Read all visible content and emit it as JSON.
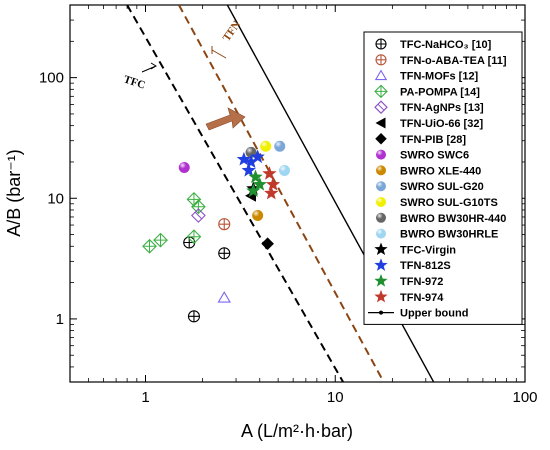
{
  "chart_data": {
    "type": "scatter",
    "xlabel": "A (L/m²·h·bar)",
    "ylabel": "A/B (bar⁻¹)",
    "xscale": "log",
    "yscale": "log",
    "xlim": [
      0.4,
      100
    ],
    "ylim": [
      0.3,
      400
    ],
    "xticks": [
      1,
      10,
      100
    ],
    "xtick_labels": [
      "1",
      "10",
      "100"
    ],
    "yticks": [
      1,
      10,
      100
    ],
    "ytick_labels": [
      "1",
      "10",
      "100"
    ],
    "grid": false,
    "legend_position": "top-right",
    "annotations": [
      {
        "text": "TFC",
        "color": "#000000"
      },
      {
        "text": "TFN",
        "color": "#8b4513"
      }
    ],
    "lines": [
      {
        "name": "TFC",
        "style": "dashed",
        "color": "#000000",
        "points": [
          [
            0.8,
            400
          ],
          [
            11,
            0.3
          ]
        ]
      },
      {
        "name": "TFN",
        "style": "dashed",
        "color": "#8b4513",
        "points": [
          [
            1.5,
            400
          ],
          [
            18,
            0.3
          ]
        ]
      },
      {
        "name": "Upper bound",
        "style": "solid",
        "color": "#000000",
        "points": [
          [
            2.7,
            400
          ],
          [
            33,
            0.3
          ]
        ]
      }
    ],
    "series": [
      {
        "name": "TFC-NaHCO₃ [10]",
        "marker": "circle-plus",
        "color": "#000000",
        "points": [
          [
            1.7,
            4.3
          ],
          [
            2.6,
            3.5
          ],
          [
            1.8,
            1.05
          ]
        ]
      },
      {
        "name": "TFN-o-ABA-TEA [11]",
        "marker": "circle-plus",
        "color": "#b8553a",
        "points": [
          [
            2.6,
            6.1
          ]
        ]
      },
      {
        "name": "TFN-MOFs [12]",
        "marker": "triangle-open",
        "color": "#7b68ee",
        "points": [
          [
            2.6,
            1.5
          ]
        ]
      },
      {
        "name": "PA-POMPA [14]",
        "marker": "diamond-plus",
        "color": "#3cb043",
        "points": [
          [
            1.05,
            4.0
          ],
          [
            1.2,
            4.5
          ],
          [
            1.8,
            4.8
          ],
          [
            1.8,
            9.8
          ],
          [
            1.9,
            8.5
          ]
        ]
      },
      {
        "name": "TFN-AgNPs [13]",
        "marker": "diamond-slash",
        "color": "#8a4fc7",
        "points": [
          [
            1.9,
            7.2
          ]
        ]
      },
      {
        "name": "TFN-UiO-66 [32]",
        "marker": "triangle-left",
        "color": "#000000",
        "points": [
          [
            3.6,
            10.5
          ]
        ]
      },
      {
        "name": "TFN-PIB [28]",
        "marker": "diamond",
        "color": "#000000",
        "points": [
          [
            4.4,
            4.2
          ]
        ]
      },
      {
        "name": "SWRO SWC6",
        "marker": "ball",
        "color": "#b030d0",
        "points": [
          [
            1.6,
            18
          ]
        ]
      },
      {
        "name": "BWRO XLE-440",
        "marker": "ball",
        "color": "#cc8800",
        "points": [
          [
            3.9,
            7.2
          ]
        ]
      },
      {
        "name": "SWRO SUL-G20",
        "marker": "ball",
        "color": "#7aa6d8",
        "points": [
          [
            5.1,
            27
          ]
        ]
      },
      {
        "name": "SWRO SUL-G10TS",
        "marker": "ball",
        "color": "#f0f000",
        "points": [
          [
            4.3,
            27
          ]
        ]
      },
      {
        "name": "BWRO BW30HR-440",
        "marker": "ball",
        "color": "#666666",
        "points": [
          [
            3.6,
            24
          ]
        ]
      },
      {
        "name": "BWRO BW30HRLE",
        "marker": "ball",
        "color": "#9fd6f2",
        "points": [
          [
            5.4,
            17
          ]
        ]
      },
      {
        "name": "TFC-Virgin",
        "marker": "star",
        "color": "#000000",
        "points": [
          [
            3.7,
            12
          ]
        ]
      },
      {
        "name": "TFN-812S",
        "marker": "star",
        "color": "#1f3fe0",
        "points": [
          [
            3.3,
            21
          ],
          [
            3.6,
            20
          ],
          [
            3.5,
            17
          ],
          [
            3.9,
            22
          ]
        ]
      },
      {
        "name": "TFN-972",
        "marker": "star",
        "color": "#1f8f2f",
        "points": [
          [
            3.8,
            15
          ],
          [
            4.0,
            13
          ],
          [
            3.7,
            11.5
          ]
        ]
      },
      {
        "name": "TFN-974",
        "marker": "star",
        "color": "#c0392b",
        "points": [
          [
            4.5,
            16
          ],
          [
            4.7,
            13
          ],
          [
            4.6,
            11
          ]
        ]
      }
    ],
    "legend": [
      {
        "label": "TFC-NaHCO₃ [10]",
        "marker": "circle-plus",
        "color": "#000000"
      },
      {
        "label": "TFN-o-ABA-TEA [11]",
        "marker": "circle-plus",
        "color": "#b8553a"
      },
      {
        "label": "TFN-MOFs [12]",
        "marker": "triangle-open",
        "color": "#7b68ee"
      },
      {
        "label": "PA-POMPA [14]",
        "marker": "diamond-plus",
        "color": "#3cb043"
      },
      {
        "label": "TFN-AgNPs [13]",
        "marker": "diamond-slash",
        "color": "#8a4fc7"
      },
      {
        "label": "TFN-UiO-66 [32]",
        "marker": "triangle-left",
        "color": "#000000"
      },
      {
        "label": "TFN-PIB [28]",
        "marker": "diamond",
        "color": "#000000"
      },
      {
        "label": "SWRO SWC6",
        "marker": "ball",
        "color": "#b030d0"
      },
      {
        "label": "BWRO XLE-440",
        "marker": "ball",
        "color": "#cc8800"
      },
      {
        "label": "SWRO SUL-G20",
        "marker": "ball",
        "color": "#7aa6d8"
      },
      {
        "label": "SWRO SUL-G10TS",
        "marker": "ball",
        "color": "#f0f000"
      },
      {
        "label": "BWRO BW30HR-440",
        "marker": "ball",
        "color": "#666666"
      },
      {
        "label": "BWRO BW30HRLE",
        "marker": "ball",
        "color": "#9fd6f2"
      },
      {
        "label": "TFC-Virgin",
        "marker": "star",
        "color": "#000000"
      },
      {
        "label": "TFN-812S",
        "marker": "star",
        "color": "#1f3fe0"
      },
      {
        "label": "TFN-972",
        "marker": "star",
        "color": "#1f8f2f"
      },
      {
        "label": "TFN-974",
        "marker": "star",
        "color": "#c0392b"
      },
      {
        "label": "Upper bound",
        "marker": "line-dot",
        "color": "#000000"
      }
    ],
    "arrow_color": "#b5704a"
  }
}
